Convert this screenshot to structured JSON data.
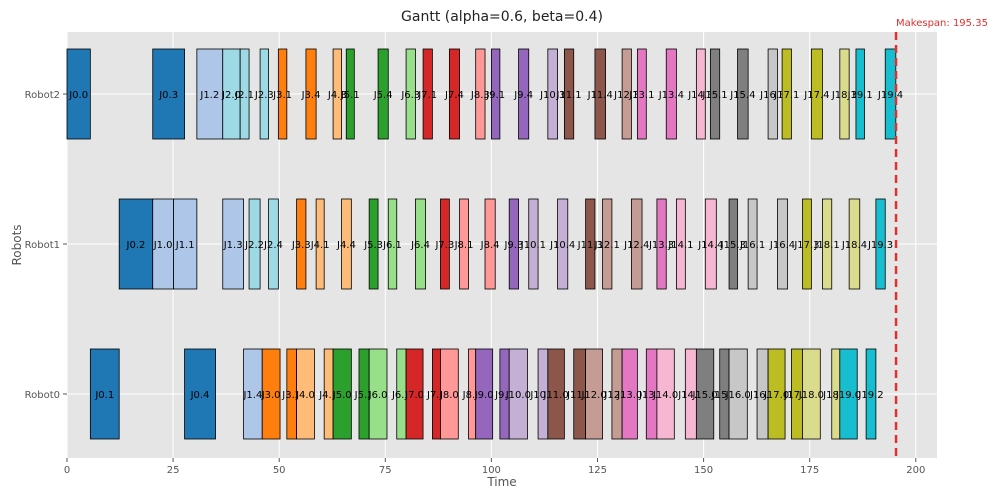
{
  "chart_data": {
    "type": "gantt",
    "title": "Gantt (alpha=0.6, beta=0.4)",
    "xlabel": "Time",
    "ylabel": "Robots",
    "xlim": [
      0,
      205
    ],
    "xticks": [
      "0",
      "25",
      "50",
      "75",
      "100",
      "125",
      "150",
      "175",
      "200"
    ],
    "xtick_values": [
      0,
      25,
      50,
      75,
      100,
      125,
      150,
      175,
      200
    ],
    "grid": true,
    "robots": [
      "Robot0",
      "Robot1",
      "Robot2"
    ],
    "makespan": {
      "value": 195.35,
      "label": "Makespan: 195.35",
      "color": "#e03030"
    },
    "job_colors": [
      "#1f77b4",
      "#aec7e8",
      "#9edae5",
      "#ff7f0e",
      "#ffbb78",
      "#2ca02c",
      "#98df8a",
      "#d62728",
      "#ff9896",
      "#9467bd",
      "#c5b0d5",
      "#8c564b",
      "#c49c94",
      "#e377c2",
      "#f7b6d2",
      "#7f7f7f",
      "#c7c7c7",
      "#bcbd22",
      "#dbdb8d",
      "#17becf"
    ],
    "tasks": [
      {
        "robot": "Robot2",
        "label": "J0.0",
        "job": 0,
        "start": 0.0,
        "end": 5.5
      },
      {
        "robot": "Robot2",
        "label": "J0.3",
        "job": 0,
        "start": 20.2,
        "end": 27.7
      },
      {
        "robot": "Robot2",
        "label": "J1.2",
        "job": 1,
        "start": 30.6,
        "end": 36.7
      },
      {
        "robot": "Robot2",
        "label": "J2.0",
        "job": 2,
        "start": 36.7,
        "end": 40.8
      },
      {
        "robot": "Robot2",
        "label": "J2.1",
        "job": 2,
        "start": 40.8,
        "end": 42.9
      },
      {
        "robot": "Robot2",
        "label": "J2.3",
        "job": 2,
        "start": 45.5,
        "end": 47.5
      },
      {
        "robot": "Robot2",
        "label": "J3.1",
        "job": 3,
        "start": 49.8,
        "end": 51.8
      },
      {
        "robot": "Robot2",
        "label": "J3.4",
        "job": 3,
        "start": 56.3,
        "end": 58.7
      },
      {
        "robot": "Robot2",
        "label": "J4.3",
        "job": 4,
        "start": 62.7,
        "end": 64.7
      },
      {
        "robot": "Robot2",
        "label": "J5.1",
        "job": 5,
        "start": 65.8,
        "end": 67.7
      },
      {
        "robot": "Robot2",
        "label": "J5.4",
        "job": 5,
        "start": 73.3,
        "end": 75.7
      },
      {
        "robot": "Robot2",
        "label": "J6.3",
        "job": 6,
        "start": 79.9,
        "end": 82.1
      },
      {
        "robot": "Robot2",
        "label": "J7.1",
        "job": 7,
        "start": 83.9,
        "end": 86.1
      },
      {
        "robot": "Robot2",
        "label": "J7.4",
        "job": 7,
        "start": 90.1,
        "end": 92.5
      },
      {
        "robot": "Robot2",
        "label": "J8.3",
        "job": 8,
        "start": 96.3,
        "end": 98.5
      },
      {
        "robot": "Robot2",
        "label": "J9.1",
        "job": 9,
        "start": 100.0,
        "end": 102.0
      },
      {
        "robot": "Robot2",
        "label": "J9.4",
        "job": 9,
        "start": 106.4,
        "end": 108.8
      },
      {
        "robot": "Robot2",
        "label": "J10.3",
        "job": 10,
        "start": 113.3,
        "end": 115.6
      },
      {
        "robot": "Robot2",
        "label": "J11.1",
        "job": 11,
        "start": 117.2,
        "end": 119.4
      },
      {
        "robot": "Robot2",
        "label": "J11.4",
        "job": 11,
        "start": 124.4,
        "end": 126.9
      },
      {
        "robot": "Robot2",
        "label": "J12.3",
        "job": 12,
        "start": 130.8,
        "end": 133.0
      },
      {
        "robot": "Robot2",
        "label": "J13.1",
        "job": 13,
        "start": 134.4,
        "end": 136.5
      },
      {
        "robot": "Robot2",
        "label": "J13.4",
        "job": 13,
        "start": 141.2,
        "end": 143.6
      },
      {
        "robot": "Robot2",
        "label": "J14.3",
        "job": 14,
        "start": 148.3,
        "end": 150.4
      },
      {
        "robot": "Robot2",
        "label": "J15.1",
        "job": 15,
        "start": 151.6,
        "end": 153.8
      },
      {
        "robot": "Robot2",
        "label": "J15.4",
        "job": 15,
        "start": 158.0,
        "end": 160.5
      },
      {
        "robot": "Robot2",
        "label": "J16.3",
        "job": 16,
        "start": 165.2,
        "end": 167.4
      },
      {
        "robot": "Robot2",
        "label": "J17.1",
        "job": 17,
        "start": 168.5,
        "end": 170.7
      },
      {
        "robot": "Robot2",
        "label": "J17.4",
        "job": 17,
        "start": 175.4,
        "end": 178.0
      },
      {
        "robot": "Robot2",
        "label": "J18.3",
        "job": 18,
        "start": 182.1,
        "end": 184.3
      },
      {
        "robot": "Robot2",
        "label": "J19.1",
        "job": 19,
        "start": 185.9,
        "end": 187.9
      },
      {
        "robot": "Robot2",
        "label": "J19.4",
        "job": 19,
        "start": 192.8,
        "end": 195.3
      },
      {
        "robot": "Robot1",
        "label": "J0.2",
        "job": 0,
        "start": 12.3,
        "end": 20.2
      },
      {
        "robot": "Robot1",
        "label": "J1.0",
        "job": 1,
        "start": 20.2,
        "end": 25.1
      },
      {
        "robot": "Robot1",
        "label": "J1.1",
        "job": 1,
        "start": 25.1,
        "end": 30.6
      },
      {
        "robot": "Robot1",
        "label": "J1.3",
        "job": 1,
        "start": 36.7,
        "end": 41.6
      },
      {
        "robot": "Robot1",
        "label": "J2.2",
        "job": 2,
        "start": 42.9,
        "end": 45.5
      },
      {
        "robot": "Robot1",
        "label": "J2.4",
        "job": 2,
        "start": 47.5,
        "end": 49.8
      },
      {
        "robot": "Robot1",
        "label": "J3.3",
        "job": 3,
        "start": 54.1,
        "end": 56.3
      },
      {
        "robot": "Robot1",
        "label": "J4.1",
        "job": 4,
        "start": 58.7,
        "end": 60.6
      },
      {
        "robot": "Robot1",
        "label": "J4.4",
        "job": 4,
        "start": 64.7,
        "end": 67.0
      },
      {
        "robot": "Robot1",
        "label": "J5.3",
        "job": 5,
        "start": 71.2,
        "end": 73.3
      },
      {
        "robot": "Robot1",
        "label": "J6.1",
        "job": 6,
        "start": 75.7,
        "end": 77.7
      },
      {
        "robot": "Robot1",
        "label": "J6.4",
        "job": 6,
        "start": 82.1,
        "end": 84.5
      },
      {
        "robot": "Robot1",
        "label": "J7.3",
        "job": 7,
        "start": 88.0,
        "end": 90.1
      },
      {
        "robot": "Robot1",
        "label": "J8.1",
        "job": 8,
        "start": 92.5,
        "end": 94.6
      },
      {
        "robot": "Robot1",
        "label": "J8.4",
        "job": 8,
        "start": 98.5,
        "end": 100.9
      },
      {
        "robot": "Robot1",
        "label": "J9.3",
        "job": 9,
        "start": 104.2,
        "end": 106.4
      },
      {
        "robot": "Robot1",
        "label": "J10.1",
        "job": 10,
        "start": 108.8,
        "end": 111.0
      },
      {
        "robot": "Robot1",
        "label": "J10.4",
        "job": 10,
        "start": 115.6,
        "end": 118.0
      },
      {
        "robot": "Robot1",
        "label": "J11.3",
        "job": 11,
        "start": 122.2,
        "end": 124.4
      },
      {
        "robot": "Robot1",
        "label": "J12.1",
        "job": 12,
        "start": 126.2,
        "end": 128.4
      },
      {
        "robot": "Robot1",
        "label": "J12.4",
        "job": 12,
        "start": 133.0,
        "end": 135.5
      },
      {
        "robot": "Robot1",
        "label": "J13.3",
        "job": 13,
        "start": 139.0,
        "end": 141.2
      },
      {
        "robot": "Robot1",
        "label": "J14.1",
        "job": 14,
        "start": 143.6,
        "end": 145.7
      },
      {
        "robot": "Robot1",
        "label": "J14.4",
        "job": 14,
        "start": 150.4,
        "end": 153.0
      },
      {
        "robot": "Robot1",
        "label": "J15.3",
        "job": 15,
        "start": 156.0,
        "end": 158.0
      },
      {
        "robot": "Robot1",
        "label": "J16.1",
        "job": 16,
        "start": 160.5,
        "end": 162.6
      },
      {
        "robot": "Robot1",
        "label": "J16.4",
        "job": 16,
        "start": 167.4,
        "end": 169.8
      },
      {
        "robot": "Robot1",
        "label": "J17.3",
        "job": 17,
        "start": 173.3,
        "end": 175.4
      },
      {
        "robot": "Robot1",
        "label": "J18.1",
        "job": 18,
        "start": 178.0,
        "end": 180.2
      },
      {
        "robot": "Robot1",
        "label": "J18.4",
        "job": 18,
        "start": 184.3,
        "end": 186.8
      },
      {
        "robot": "Robot1",
        "label": "J19.3",
        "job": 19,
        "start": 190.6,
        "end": 192.8
      },
      {
        "robot": "Robot0",
        "label": "J0.1",
        "job": 0,
        "start": 5.5,
        "end": 12.3
      },
      {
        "robot": "Robot0",
        "label": "J0.4",
        "job": 0,
        "start": 27.7,
        "end": 35.0
      },
      {
        "robot": "Robot0",
        "label": "J1.4",
        "job": 1,
        "start": 41.6,
        "end": 46.0
      },
      {
        "robot": "Robot0",
        "label": "J3.0",
        "job": 3,
        "start": 46.0,
        "end": 50.2
      },
      {
        "robot": "Robot0",
        "label": "J3.2",
        "job": 3,
        "start": 51.8,
        "end": 54.1
      },
      {
        "robot": "Robot0",
        "label": "J4.0",
        "job": 4,
        "start": 54.1,
        "end": 58.3
      },
      {
        "robot": "Robot0",
        "label": "J4.2",
        "job": 4,
        "start": 60.6,
        "end": 62.7
      },
      {
        "robot": "Robot0",
        "label": "J5.0",
        "job": 5,
        "start": 62.7,
        "end": 67.0
      },
      {
        "robot": "Robot0",
        "label": "J5.2",
        "job": 5,
        "start": 68.8,
        "end": 71.2
      },
      {
        "robot": "Robot0",
        "label": "J6.0",
        "job": 6,
        "start": 71.2,
        "end": 75.4
      },
      {
        "robot": "Robot0",
        "label": "J6.2",
        "job": 6,
        "start": 77.7,
        "end": 79.9
      },
      {
        "robot": "Robot0",
        "label": "J7.0",
        "job": 7,
        "start": 79.9,
        "end": 83.9
      },
      {
        "robot": "Robot0",
        "label": "J7.2",
        "job": 7,
        "start": 86.1,
        "end": 88.0
      },
      {
        "robot": "Robot0",
        "label": "J8.0",
        "job": 8,
        "start": 88.0,
        "end": 92.2
      },
      {
        "robot": "Robot0",
        "label": "J8.2",
        "job": 8,
        "start": 94.6,
        "end": 96.3
      },
      {
        "robot": "Robot0",
        "label": "J9.0",
        "job": 9,
        "start": 96.3,
        "end": 100.3
      },
      {
        "robot": "Robot0",
        "label": "J9.2",
        "job": 9,
        "start": 102.0,
        "end": 104.2
      },
      {
        "robot": "Robot0",
        "label": "J10.0",
        "job": 10,
        "start": 104.2,
        "end": 108.5
      },
      {
        "robot": "Robot0",
        "label": "J10.2",
        "job": 10,
        "start": 111.0,
        "end": 113.3
      },
      {
        "robot": "Robot0",
        "label": "J11.0",
        "job": 11,
        "start": 113.3,
        "end": 117.2
      },
      {
        "robot": "Robot0",
        "label": "J11.2",
        "job": 11,
        "start": 119.4,
        "end": 122.2
      },
      {
        "robot": "Robot0",
        "label": "J12.0",
        "job": 12,
        "start": 122.2,
        "end": 126.2
      },
      {
        "robot": "Robot0",
        "label": "J12.2",
        "job": 12,
        "start": 128.4,
        "end": 130.8
      },
      {
        "robot": "Robot0",
        "label": "J13.0",
        "job": 13,
        "start": 130.8,
        "end": 134.4
      },
      {
        "robot": "Robot0",
        "label": "J13.2",
        "job": 13,
        "start": 136.5,
        "end": 139.0
      },
      {
        "robot": "Robot0",
        "label": "J14.0",
        "job": 14,
        "start": 139.0,
        "end": 143.1
      },
      {
        "robot": "Robot0",
        "label": "J14.2",
        "job": 14,
        "start": 145.7,
        "end": 148.3
      },
      {
        "robot": "Robot0",
        "label": "J15.0",
        "job": 15,
        "start": 148.3,
        "end": 152.4
      },
      {
        "robot": "Robot0",
        "label": "J15.2",
        "job": 15,
        "start": 153.8,
        "end": 156.0
      },
      {
        "robot": "Robot0",
        "label": "J16.0",
        "job": 16,
        "start": 156.0,
        "end": 160.3
      },
      {
        "robot": "Robot0",
        "label": "J16.2",
        "job": 16,
        "start": 162.6,
        "end": 165.2
      },
      {
        "robot": "Robot0",
        "label": "J17.0",
        "job": 17,
        "start": 165.2,
        "end": 169.2
      },
      {
        "robot": "Robot0",
        "label": "J17.2",
        "job": 17,
        "start": 170.7,
        "end": 173.3
      },
      {
        "robot": "Robot0",
        "label": "J18.0",
        "job": 18,
        "start": 173.3,
        "end": 177.5
      },
      {
        "robot": "Robot0",
        "label": "J18.2",
        "job": 18,
        "start": 180.2,
        "end": 182.1
      },
      {
        "robot": "Robot0",
        "label": "J19.0",
        "job": 19,
        "start": 182.1,
        "end": 186.2
      },
      {
        "robot": "Robot0",
        "label": "J19.2",
        "job": 19,
        "start": 188.3,
        "end": 190.6
      }
    ]
  }
}
